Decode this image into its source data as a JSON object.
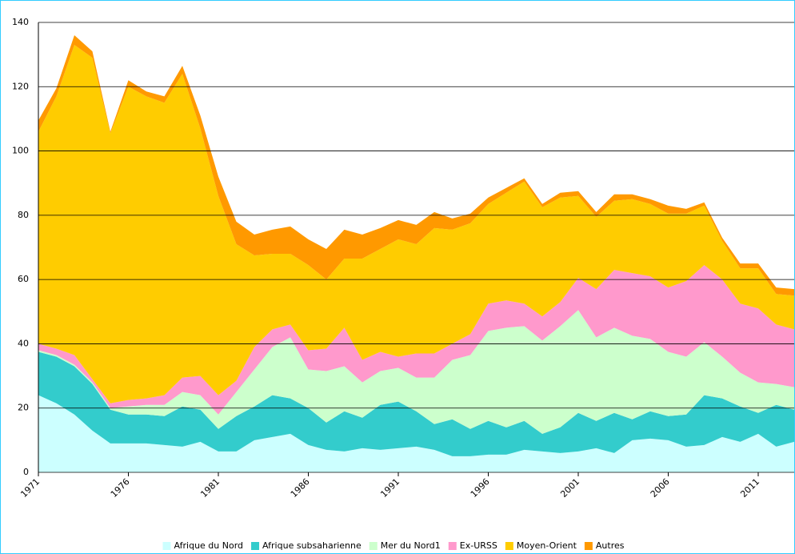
{
  "chart_data": {
    "type": "stacked_area",
    "x": [
      1971,
      1972,
      1973,
      1974,
      1975,
      1976,
      1977,
      1978,
      1979,
      1980,
      1981,
      1982,
      1983,
      1984,
      1985,
      1986,
      1987,
      1988,
      1989,
      1990,
      1991,
      1992,
      1993,
      1994,
      1995,
      1996,
      1997,
      1998,
      1999,
      2000,
      2001,
      2002,
      2003,
      2004,
      2005,
      2006,
      2007,
      2008,
      2009,
      2010,
      2011,
      2012,
      2013
    ],
    "xlim": [
      1971,
      2013
    ],
    "xticks": [
      1971,
      1976,
      1981,
      1986,
      1991,
      1996,
      2001,
      2006,
      2011
    ],
    "ylim": [
      0,
      140
    ],
    "yticks": [
      0,
      20,
      40,
      60,
      80,
      100,
      120,
      140
    ],
    "grid": true,
    "legend": "bottom",
    "series": [
      {
        "name": "Afrique du Nord",
        "color": "#ccffff",
        "values": [
          24,
          21.5,
          18,
          13,
          9,
          9,
          9,
          8.5,
          8,
          9.5,
          6.5,
          6.5,
          10,
          11,
          12,
          8.5,
          7,
          6.5,
          7.5,
          7,
          7.5,
          8,
          7,
          5,
          5,
          5.5,
          5.5,
          7,
          6.5,
          6,
          6.5,
          7.5,
          6,
          10,
          10.5,
          10,
          8,
          8.5,
          11,
          9.5,
          12,
          8,
          9.5
        ]
      },
      {
        "name": "Afrique subsaharienne",
        "color": "#33cccc",
        "values": [
          13.5,
          14.5,
          15,
          14.5,
          10.5,
          9,
          9,
          9,
          12.5,
          10,
          7,
          11,
          10.5,
          13,
          11,
          11.5,
          8.5,
          12.5,
          9.5,
          14,
          14.5,
          11,
          8,
          11.5,
          8.5,
          10.5,
          8.5,
          9,
          5.5,
          8,
          12,
          8.5,
          12.5,
          6.5,
          8.5,
          7.5,
          10,
          15.5,
          12,
          11,
          6.5,
          13,
          10
        ]
      },
      {
        "name": "Mer du Nord1",
        "color": "#ccffcc",
        "values": [
          0.5,
          0.5,
          0.5,
          0.5,
          0.5,
          2.5,
          3,
          3.5,
          4.5,
          4.5,
          4.5,
          7.5,
          11.5,
          15,
          19,
          12,
          16,
          14,
          11,
          10.5,
          10.5,
          10.5,
          14.5,
          18.5,
          23,
          28,
          31,
          29.5,
          29,
          31.5,
          32,
          26,
          26.5,
          26,
          22.5,
          20,
          18,
          16.5,
          13,
          10.5,
          9.5,
          6.5,
          7
        ]
      },
      {
        "name": "Ex-URSS",
        "color": "#ff99cc",
        "values": [
          2,
          2,
          3,
          1,
          1.5,
          2,
          2,
          3,
          4.5,
          6,
          6,
          3.5,
          7,
          5.5,
          4,
          6,
          7,
          12,
          7,
          6,
          3.5,
          7.5,
          7.5,
          5,
          6.5,
          8.5,
          8.5,
          7,
          7.5,
          7.5,
          10,
          15,
          18,
          19.5,
          19.5,
          20,
          23.5,
          24,
          24,
          21.5,
          23,
          18.5,
          18
        ]
      },
      {
        "name": "Moyen-Orient",
        "color": "#ffcc00",
        "values": [
          66,
          78.5,
          96.5,
          100,
          84,
          97.5,
          94,
          91,
          94.5,
          77,
          62,
          42.5,
          28.5,
          23.5,
          22,
          26.5,
          21.5,
          21.5,
          31.5,
          32,
          36.5,
          34,
          39,
          35.5,
          34.5,
          31,
          33.5,
          38,
          34,
          32.5,
          25.5,
          22.5,
          21.5,
          23,
          22.5,
          23,
          21,
          18.5,
          12,
          11,
          12.5,
          9.5,
          10.5
        ]
      },
      {
        "name": "Autres",
        "color": "#ff9900",
        "values": [
          3.5,
          2.5,
          3,
          2,
          0.5,
          2,
          1.5,
          2,
          2.5,
          4,
          6,
          7,
          6.5,
          7.5,
          8.5,
          8,
          9.5,
          9,
          7.5,
          6.5,
          6,
          6,
          5,
          3.5,
          3,
          2,
          1.5,
          1,
          1,
          1.5,
          1.5,
          1.5,
          2,
          1.5,
          1.5,
          2.5,
          1.5,
          1,
          1,
          1.5,
          1.5,
          2,
          2
        ]
      }
    ]
  }
}
